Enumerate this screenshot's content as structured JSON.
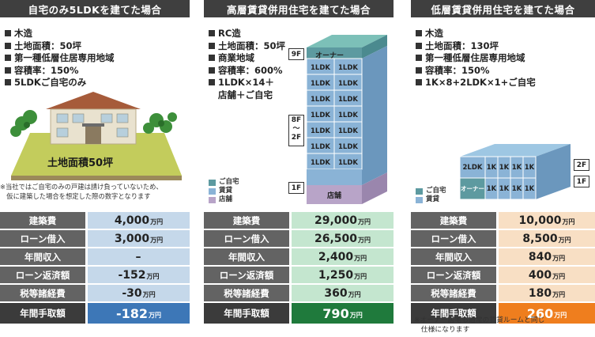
{
  "colors": {
    "title_bg": "#3f3f3f",
    "label_bg": "#636363",
    "col1_val_bg": "#c5d8ea",
    "col1_total_bg": "#3d77b7",
    "col2_val_bg": "#c4e6cf",
    "col2_total_bg": "#1f7a3c",
    "col3_val_bg": "#f8dfc4",
    "col3_total_bg": "#ef7e1e",
    "owner_floor": "#5d9aa0",
    "rental_floor": "#8ab3d6",
    "shop_floor": "#b8a4c8"
  },
  "columns": [
    {
      "title": "自宅のみ5LDKを建てた場合",
      "specs": [
        "木造",
        "土地面積：50坪",
        "第一種低層住居専用地域",
        "容積率：150%",
        "5LDKご自宅のみ"
      ],
      "land_label": "土地面積50坪",
      "note": "※当社ではご自宅のみの戸建は請け負っていないため、\n　仮に建築した場合を想定した際の数字となります",
      "rows": [
        {
          "label": "建築費",
          "value": "4,000",
          "unit": "万円"
        },
        {
          "label": "ローン借入",
          "value": "3,000",
          "unit": "万円"
        },
        {
          "label": "年間収入",
          "value": "–",
          "unit": ""
        },
        {
          "label": "ローン返済額",
          "value": "-152",
          "unit": "万円"
        },
        {
          "label": "税等諸経費",
          "value": "-30",
          "unit": "万円"
        }
      ],
      "total": {
        "label": "年間手取額",
        "value": "-182",
        "unit": "万円"
      }
    },
    {
      "title": "高層賃貸併用住宅を建てた場合",
      "specs": [
        "RC造",
        "土地面積：50坪",
        "商業地域",
        "容積率：600%",
        "1LDK×14＋\n店舗＋ご自宅"
      ],
      "floor_labels": {
        "top": "9F",
        "mid": "8F\n〜\n2F",
        "bottom": "1F"
      },
      "owner_label": "オーナー",
      "unit_label": "1LDK",
      "shop_label": "店舗",
      "legend": [
        "ご自宅",
        "賃貸",
        "店舗"
      ],
      "rows": [
        {
          "label": "建築費",
          "value": "29,000",
          "unit": "万円"
        },
        {
          "label": "ローン借入",
          "value": "26,500",
          "unit": "万円"
        },
        {
          "label": "年間収入",
          "value": "2,400",
          "unit": "万円"
        },
        {
          "label": "ローン返済額",
          "value": "1,250",
          "unit": "万円"
        },
        {
          "label": "税等諸経費",
          "value": "360",
          "unit": "万円"
        }
      ],
      "total": {
        "label": "年間手取額",
        "value": "790",
        "unit": "万円"
      }
    },
    {
      "title": "低層賃貸併用住宅を建てた場合",
      "specs": [
        "木造",
        "土地面積：130坪",
        "第一種低層住居専用地域",
        "容積率：150%",
        "1K×8+2LDK×1+ご自宅"
      ],
      "floor_labels": {
        "top": "2F",
        "bottom": "1F"
      },
      "owner_label": "オーナー",
      "unit_2ldk": "2LDK",
      "unit_1k": "1K",
      "legend": [
        "ご自宅",
        "賃貸"
      ],
      "rows": [
        {
          "label": "建築費",
          "value": "10,000",
          "unit": "万円"
        },
        {
          "label": "ローン借入",
          "value": "8,500",
          "unit": "万円"
        },
        {
          "label": "年間収入",
          "value": "840",
          "unit": "万円"
        },
        {
          "label": "ローン返済額",
          "value": "400",
          "unit": "万円"
        },
        {
          "label": "税等諸経費",
          "value": "180",
          "unit": "万円"
        }
      ],
      "total": {
        "label": "年間手取額",
        "value": "260",
        "unit": "万円"
      },
      "note": "※オーナー居宅も通常の賃貸ルームと同じ\n　仕様になります"
    }
  ]
}
